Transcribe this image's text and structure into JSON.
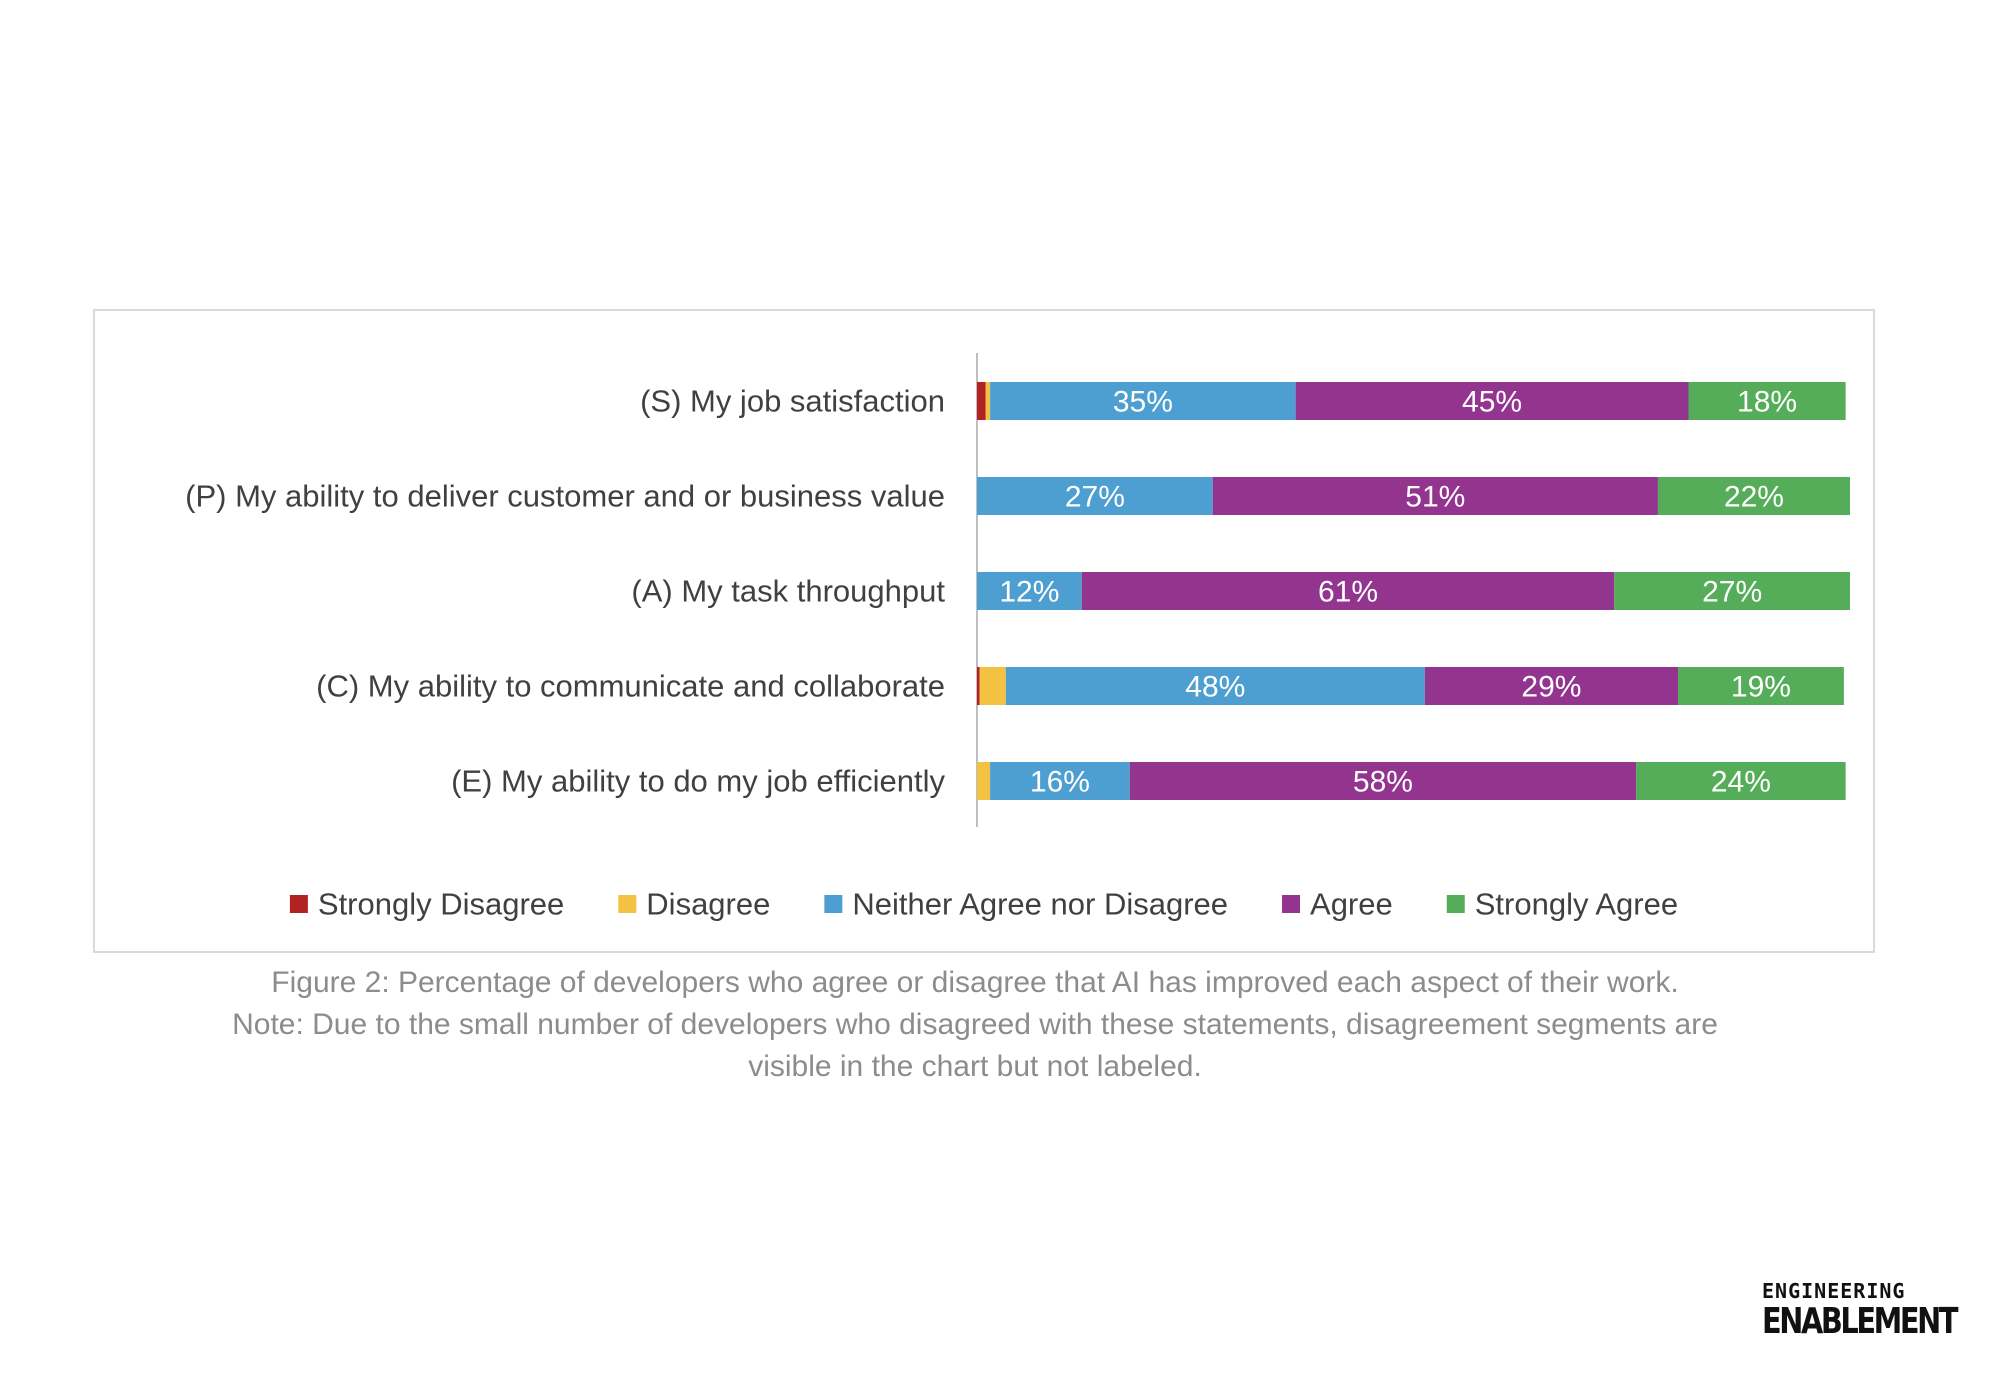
{
  "chart_data": {
    "type": "bar",
    "orientation": "horizontal",
    "stacked": true,
    "categories": [
      "(S) My job satisfaction",
      "(P) My ability to deliver customer and or business value",
      "(A) My task throughput",
      "(C) My ability to communicate and collaborate",
      "(E) My ability to do my job efficiently"
    ],
    "series": [
      {
        "name": "Strongly Disagree",
        "color": "#b22222",
        "values": [
          1,
          0,
          0,
          0.3,
          0
        ],
        "show_labels": false
      },
      {
        "name": "Disagree",
        "color": "#f4c242",
        "values": [
          0.5,
          0,
          0,
          3,
          1.5
        ],
        "show_labels": false
      },
      {
        "name": "Neither Agree nor Disagree",
        "color": "#4e9fd1",
        "values": [
          35,
          27,
          12,
          48,
          16
        ],
        "show_labels": true
      },
      {
        "name": "Agree",
        "color": "#93358f",
        "values": [
          45,
          51,
          61,
          29,
          58
        ],
        "show_labels": true
      },
      {
        "name": "Strongly Agree",
        "color": "#55ad5a",
        "values": [
          18,
          22,
          27,
          19,
          24
        ],
        "show_labels": true
      }
    ],
    "value_suffix": "%",
    "xlim": [
      0,
      100
    ],
    "legend": "bottom",
    "grid": false
  },
  "caption": {
    "line1": "Figure 2: Percentage of developers who agree or disagree that AI has improved each aspect of their work.",
    "line2": "Note: Due to the small number of developers who disagreed with these statements, disagreement segments are",
    "line3": "visible in the chart but not labeled."
  },
  "brand": {
    "top": "ENGINEERING",
    "bottom": "ENABLEMENT"
  }
}
